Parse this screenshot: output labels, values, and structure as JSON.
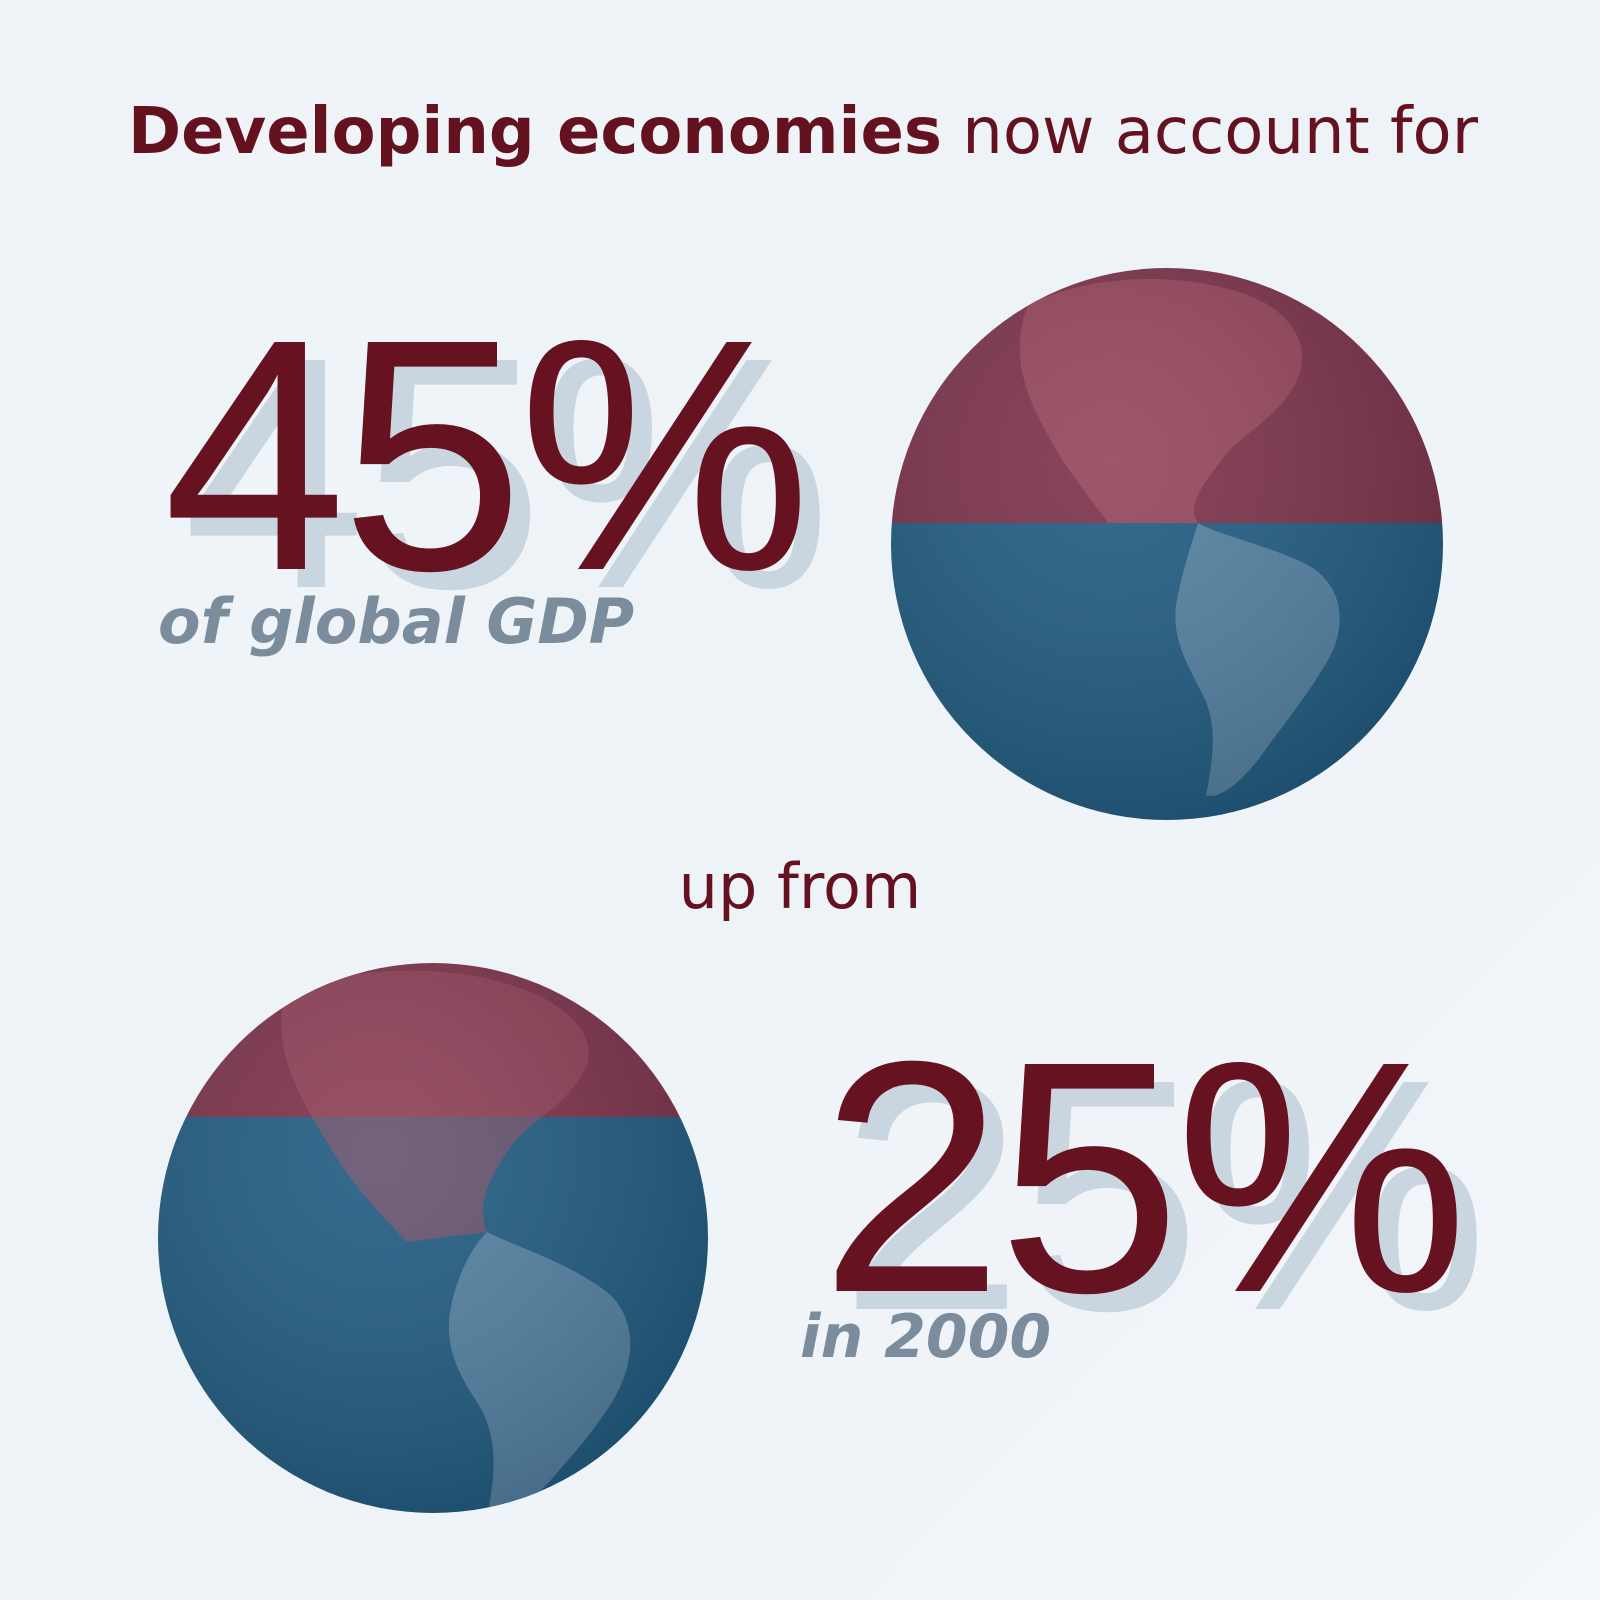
{
  "headline": {
    "bold": "Developing economies",
    "rest": " now account for"
  },
  "current": {
    "value": "45%",
    "label": "of global GDP",
    "share": 45
  },
  "connector": "up from",
  "previous": {
    "value": "25%",
    "label": "in 2000",
    "share": 25
  },
  "colors": {
    "text_primary": "#641220",
    "text_secondary": "#7b8d9c",
    "shadow": "#c9d6e0",
    "globe_top": "#7a3049",
    "globe_bottom": "#1f5a80",
    "land": "#5b86a6",
    "land_top": "#9a4a5e"
  },
  "icons": {
    "globe_1": "earth-globe-americas",
    "globe_2": "earth-globe-americas"
  }
}
